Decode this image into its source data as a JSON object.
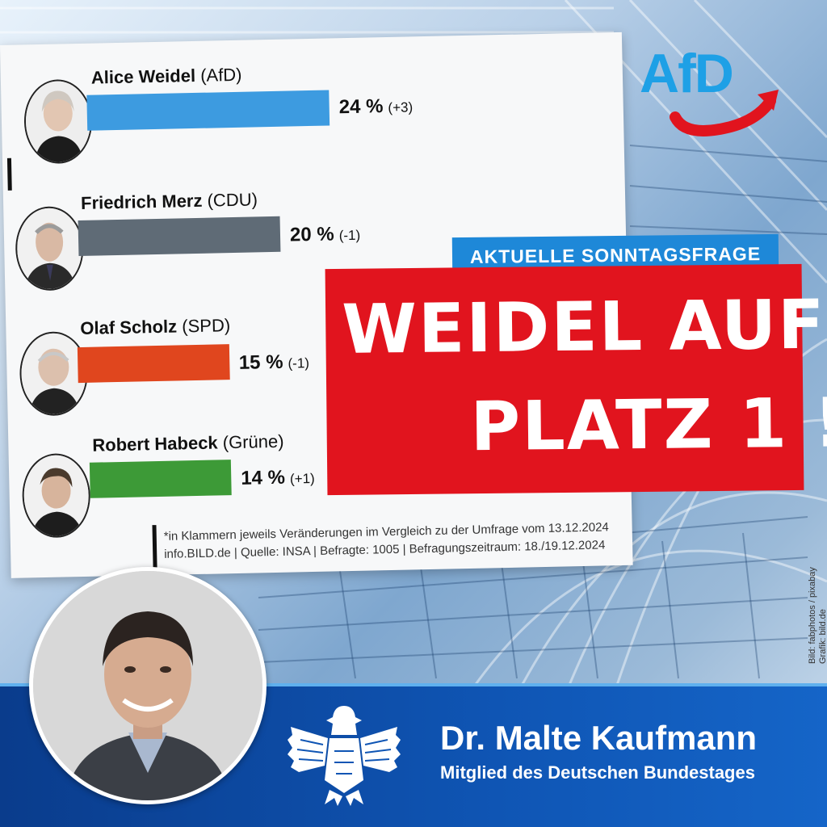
{
  "logo": {
    "text": "AfD",
    "color": "#1ea0e6",
    "arrow_color": "#e1141e"
  },
  "sub_banner": "AKTUELLE SONNTAGSFRAGE",
  "headline": {
    "line1": "WEIDEL AUF",
    "line2": "PLATZ 1 !"
  },
  "chart_data": {
    "type": "bar",
    "title": "",
    "categories": [
      "Alice Weidel (AfD)",
      "Friedrich Merz (CDU)",
      "Olaf Scholz (SPD)",
      "Robert Habeck (Grüne)"
    ],
    "values": [
      24,
      20,
      15,
      14
    ],
    "xlim": [
      0,
      26
    ],
    "rows": [
      {
        "name": "Alice Weidel",
        "party": "(AfD)",
        "value": 24,
        "value_label": "24 %",
        "change": "(+3)",
        "color": "#3d9be0"
      },
      {
        "name": "Friedrich Merz",
        "party": "(CDU)",
        "value": 20,
        "value_label": "20 %",
        "change": "(-1)",
        "color": "#5f6b76"
      },
      {
        "name": "Olaf Scholz",
        "party": "(SPD)",
        "value": 15,
        "value_label": "15 %",
        "change": "(-1)",
        "color": "#e0461e"
      },
      {
        "name": "Robert Habeck",
        "party": "(Grüne)",
        "value": 14,
        "value_label": "14 %",
        "change": "(+1)",
        "color": "#3d9a37"
      }
    ],
    "footnote1": "*in Klammern jeweils Veränderungen im Vergleich zu der Umfrage vom 13.12.2024",
    "footnote2": "info.BILD.de | Quelle: INSA | Befragte: 1005 | Befragungszeitraum: 18./19.12.2024"
  },
  "credit": {
    "line1": "Bild: fabphotos / pixabay",
    "line2": "Grafik: bild.de"
  },
  "member": {
    "name": "Dr. Malte Kaufmann",
    "title": "Mitglied des Deutschen Bundestages"
  }
}
